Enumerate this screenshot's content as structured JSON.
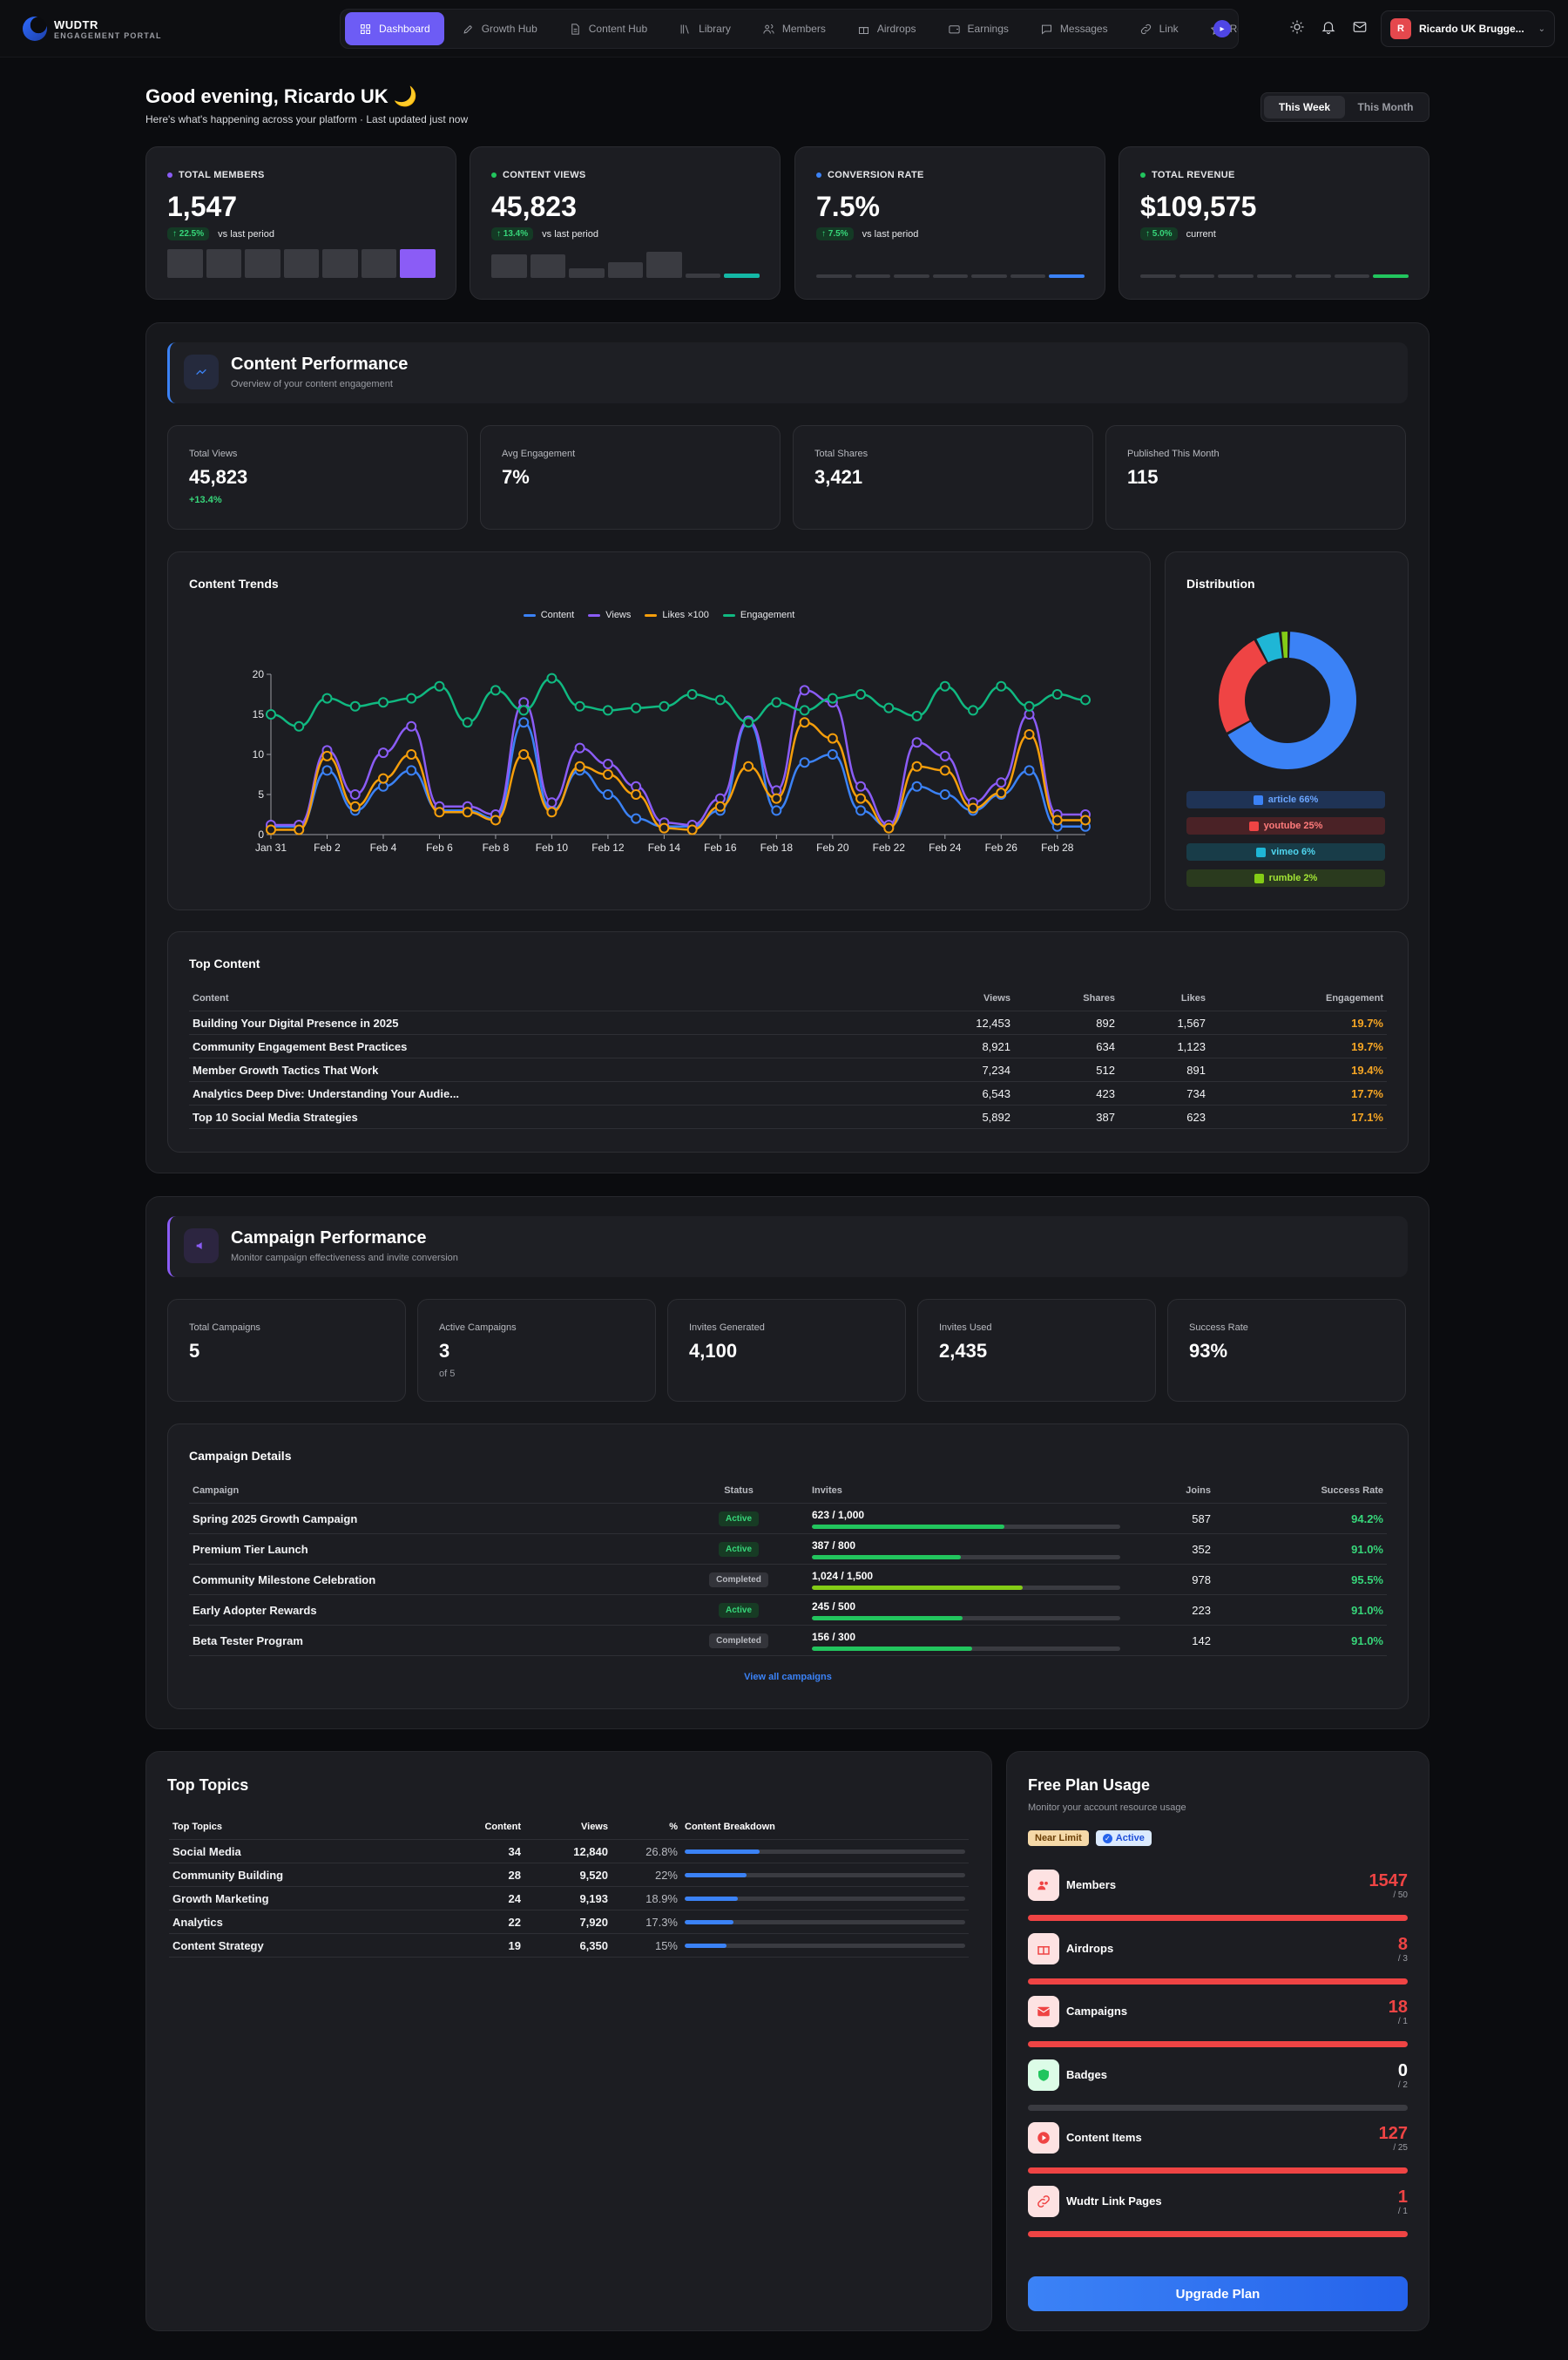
{
  "brand": {
    "name": "WUDTR",
    "tagline": "ENGAGEMENT PORTAL"
  },
  "nav": [
    {
      "label": "Dashboard",
      "icon": "grid-icon",
      "active": true
    },
    {
      "label": "Growth Hub",
      "icon": "rocket-icon"
    },
    {
      "label": "Content Hub",
      "icon": "file-icon"
    },
    {
      "label": "Library",
      "icon": "library-icon"
    },
    {
      "label": "Members",
      "icon": "users-icon"
    },
    {
      "label": "Airdrops",
      "icon": "gift-icon"
    },
    {
      "label": "Earnings",
      "icon": "wallet-icon"
    },
    {
      "label": "Messages",
      "icon": "message-icon"
    },
    {
      "label": "Link",
      "icon": "link-icon"
    },
    {
      "label": "Recomm",
      "icon": "star-icon"
    }
  ],
  "user": {
    "initial": "R",
    "name": "Ricardo UK Brugge..."
  },
  "greeting": {
    "title": "Good evening, Ricardo UK 🌙",
    "subtitle": "Here's what's happening across your platform · Last updated just now"
  },
  "period": {
    "week": "This Week",
    "month": "This Month"
  },
  "kpis": [
    {
      "label": "TOTAL MEMBERS",
      "value": "1,547",
      "delta": "↑ 22.5%",
      "note": "vs last period",
      "dot": "#8b5cf6",
      "bars": [
        0.55,
        0.55,
        0.55,
        0.55,
        0.55,
        0.55,
        0.55
      ],
      "accent": "#8b5cf6"
    },
    {
      "label": "CONTENT VIEWS",
      "value": "45,823",
      "delta": "↑ 13.4%",
      "note": "vs last period",
      "dot": "#22c55e",
      "bars": [
        0.45,
        0.45,
        0.18,
        0.3,
        0.5,
        0.08,
        0.08
      ],
      "accent": "#14b8a6"
    },
    {
      "label": "CONVERSION RATE",
      "value": "7.5%",
      "delta": "↑ 7.5%",
      "note": "vs last period",
      "dot": "#3b82f6",
      "bars": [
        0.06,
        0.06,
        0.06,
        0.06,
        0.06,
        0.06,
        0.06
      ],
      "accent": "#3b82f6"
    },
    {
      "label": "TOTAL REVENUE",
      "value": "$109,575",
      "delta": "↑ 5.0%",
      "note": "current",
      "dot": "#22c55e",
      "bars": [
        0.06,
        0.06,
        0.06,
        0.06,
        0.06,
        0.06,
        0.06
      ],
      "accent": "#22c55e"
    }
  ],
  "content": {
    "title": "Content Performance",
    "subtitle": "Overview of your content engagement",
    "stats": [
      {
        "label": "Total Views",
        "value": "45,823",
        "extra": "+13.4%"
      },
      {
        "label": "Avg Engagement",
        "value": "7%",
        "extra": ""
      },
      {
        "label": "Total Shares",
        "value": "3,421",
        "extra": ""
      },
      {
        "label": "Published This Month",
        "value": "115",
        "extra": ""
      }
    ],
    "trends_title": "Content Trends",
    "distribution_title": "Distribution",
    "distribution": [
      {
        "label": "article 66%",
        "value": 66,
        "color": "#3b82f6",
        "bg": "#1f3355",
        "fg": "#6aa5ff"
      },
      {
        "label": "youtube 25%",
        "value": 25,
        "color": "#ef4444",
        "bg": "#4a2226",
        "fg": "#ff7b7b"
      },
      {
        "label": "vimeo 6%",
        "value": 6,
        "color": "#1fb6d6",
        "bg": "#183c48",
        "fg": "#4fd6f0"
      },
      {
        "label": "rumble 2%",
        "value": 2,
        "color": "#84cc16",
        "bg": "#2a3a1e",
        "fg": "#a3e635"
      }
    ],
    "top_title": "Top Content",
    "top_headers": [
      "Content",
      "Views",
      "Shares",
      "Likes",
      "Engagement"
    ],
    "top_rows": [
      [
        "Building Your Digital Presence in 2025",
        "12,453",
        "892",
        "1,567",
        "19.7%"
      ],
      [
        "Community Engagement Best Practices",
        "8,921",
        "634",
        "1,123",
        "19.7%"
      ],
      [
        "Member Growth Tactics That Work",
        "7,234",
        "512",
        "891",
        "19.4%"
      ],
      [
        "Analytics Deep Dive: Understanding Your Audie...",
        "6,543",
        "423",
        "734",
        "17.7%"
      ],
      [
        "Top 10 Social Media Strategies",
        "5,892",
        "387",
        "623",
        "17.1%"
      ]
    ]
  },
  "chart_data": {
    "type": "line",
    "title": "Content Trends",
    "x": [
      "Jan 31",
      "Feb 1",
      "Feb 2",
      "Feb 3",
      "Feb 4",
      "Feb 5",
      "Feb 6",
      "Feb 7",
      "Feb 8",
      "Feb 9",
      "Feb 10",
      "Feb 11",
      "Feb 12",
      "Feb 13",
      "Feb 14",
      "Feb 15",
      "Feb 16",
      "Feb 17",
      "Feb 18",
      "Feb 19",
      "Feb 20",
      "Feb 21",
      "Feb 22",
      "Feb 23",
      "Feb 24",
      "Feb 25",
      "Feb 26",
      "Feb 27",
      "Feb 28",
      "Mar 1"
    ],
    "xticks": [
      "Jan 31",
      "Feb 2",
      "Feb 4",
      "Feb 6",
      "Feb 8",
      "Feb 10",
      "Feb 12",
      "Feb 14",
      "Feb 16",
      "Feb 18",
      "Feb 20",
      "Feb 22",
      "Feb 24",
      "Feb 26",
      "Feb 28"
    ],
    "ylim": [
      0,
      20
    ],
    "yticks": [
      0,
      5,
      10,
      15,
      20
    ],
    "series": [
      {
        "name": "Content",
        "color": "#3b82f6",
        "values": [
          1,
          1,
          8,
          3,
          6,
          8,
          3,
          3,
          2,
          14,
          3,
          8,
          5,
          2,
          1,
          1,
          3,
          14,
          3,
          9,
          10,
          3,
          1,
          6,
          5,
          3,
          5,
          8,
          1,
          1
        ]
      },
      {
        "name": "Views",
        "color": "#8b5cf6",
        "values": [
          1.2,
          1.2,
          10.5,
          5,
          10.2,
          13.5,
          3.5,
          3.5,
          2.5,
          16.5,
          4,
          10.8,
          8.8,
          6,
          1.5,
          1.2,
          4.5,
          14.2,
          5.5,
          18,
          16.5,
          6,
          1.2,
          11.5,
          9.8,
          4,
          6.5,
          15,
          2.5,
          2.5
        ]
      },
      {
        "name": "Likes ×100",
        "color": "#f59e0b",
        "values": [
          0.6,
          0.6,
          9.8,
          3.5,
          7,
          10,
          2.8,
          2.8,
          1.8,
          10,
          2.8,
          8.5,
          7.5,
          5,
          0.8,
          0.6,
          3.5,
          8.5,
          4.5,
          14,
          12,
          4.5,
          0.8,
          8.5,
          8,
          3.3,
          5.2,
          12.5,
          1.8,
          1.8
        ]
      },
      {
        "name": "Engagement",
        "color": "#10b981",
        "values": [
          15,
          13.5,
          17,
          16,
          16.5,
          17,
          18.5,
          14,
          18,
          15.5,
          19.5,
          16,
          15.5,
          15.8,
          16,
          17.5,
          16.8,
          14,
          16.5,
          15.5,
          17,
          17.5,
          15.8,
          14.8,
          18.5,
          15.5,
          18.5,
          16,
          17.5,
          16.8
        ]
      }
    ]
  },
  "campaign": {
    "title": "Campaign Performance",
    "subtitle": "Monitor campaign effectiveness and invite conversion",
    "stats": [
      {
        "label": "Total Campaigns",
        "value": "5",
        "extra": ""
      },
      {
        "label": "Active Campaigns",
        "value": "3",
        "extra": "of 5"
      },
      {
        "label": "Invites Generated",
        "value": "4,100",
        "extra": ""
      },
      {
        "label": "Invites Used",
        "value": "2,435",
        "extra": ""
      },
      {
        "label": "Success Rate",
        "value": "93%",
        "extra": ""
      }
    ],
    "details_title": "Campaign Details",
    "headers": [
      "Campaign",
      "Status",
      "Invites",
      "Joins",
      "Success Rate"
    ],
    "rows": [
      {
        "name": "Spring 2025 Growth Campaign",
        "status": "Active",
        "invites": "623 / 1,000",
        "fill": 0.623,
        "color": "#22c55e",
        "joins": "587",
        "rate": "94.2%"
      },
      {
        "name": "Premium Tier Launch",
        "status": "Active",
        "invites": "387 / 800",
        "fill": 0.484,
        "color": "#22c55e",
        "joins": "352",
        "rate": "91.0%"
      },
      {
        "name": "Community Milestone Celebration",
        "status": "Completed",
        "invites": "1,024 / 1,500",
        "fill": 0.683,
        "color": "#84cc16",
        "joins": "978",
        "rate": "95.5%"
      },
      {
        "name": "Early Adopter Rewards",
        "status": "Active",
        "invites": "245 / 500",
        "fill": 0.49,
        "color": "#22c55e",
        "joins": "223",
        "rate": "91.0%"
      },
      {
        "name": "Beta Tester Program",
        "status": "Completed",
        "invites": "156 / 300",
        "fill": 0.52,
        "color": "#22c55e",
        "joins": "142",
        "rate": "91.0%"
      }
    ],
    "view_all": "View all campaigns"
  },
  "topics": {
    "title": "Top Topics",
    "headers": [
      "Top Topics",
      "Content",
      "Views",
      "%",
      "Content Breakdown"
    ],
    "rows": [
      {
        "name": "Social Media",
        "content": "34",
        "views": "12,840",
        "pct": "26.8%",
        "fill": 0.268
      },
      {
        "name": "Community Building",
        "content": "28",
        "views": "9,520",
        "pct": "22%",
        "fill": 0.22
      },
      {
        "name": "Growth Marketing",
        "content": "24",
        "views": "9,193",
        "pct": "18.9%",
        "fill": 0.189
      },
      {
        "name": "Analytics",
        "content": "22",
        "views": "7,920",
        "pct": "17.3%",
        "fill": 0.173
      },
      {
        "name": "Content Strategy",
        "content": "19",
        "views": "6,350",
        "pct": "15%",
        "fill": 0.15
      }
    ]
  },
  "plan": {
    "title": "Free Plan Usage",
    "subtitle": "Monitor your account resource usage",
    "tag_near": "Near Limit",
    "tag_active": "Active",
    "items": [
      {
        "name": "Members",
        "value": "1547",
        "max": "/ 50",
        "fill": 1,
        "icon": "users-icon",
        "over": true
      },
      {
        "name": "Airdrops",
        "value": "8",
        "max": "/ 3",
        "fill": 1,
        "icon": "gift-icon",
        "over": true
      },
      {
        "name": "Campaigns",
        "value": "18",
        "max": "/ 1",
        "fill": 1,
        "icon": "mail-icon",
        "over": true
      },
      {
        "name": "Badges",
        "value": "0",
        "max": "/ 2",
        "fill": 0,
        "icon": "shield-icon",
        "over": false
      },
      {
        "name": "Content Items",
        "value": "127",
        "max": "/ 25",
        "fill": 1,
        "icon": "play-icon",
        "over": true
      },
      {
        "name": "Wudtr Link Pages",
        "value": "1",
        "max": "/ 1",
        "fill": 1,
        "icon": "link-icon",
        "over": true
      }
    ],
    "upgrade": "Upgrade Plan"
  }
}
